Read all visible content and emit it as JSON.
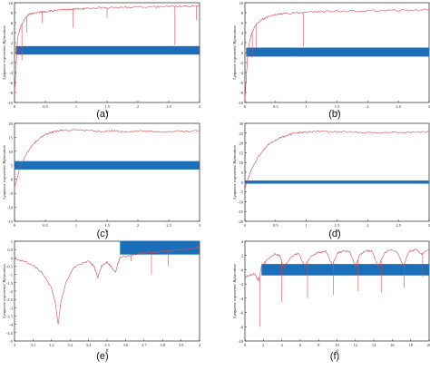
{
  "figure": {
    "panel_labels": [
      "(a)",
      "(b)",
      "(c)",
      "(d)",
      "(e)",
      "(f)"
    ],
    "colors": {
      "lyapunov": "#e0484f",
      "bifurcation": "#1a6fb8",
      "axis": "#222222"
    }
  },
  "chart_data": [
    {
      "type": "line",
      "panel": "(a)",
      "xlabel": "α",
      "ylabel": "Lyapunov exponents/ Bifurcation",
      "xlim": [
        0,
        3
      ],
      "ylim": [
        -10,
        10
      ],
      "xticks": [
        "0",
        "0.5",
        "1",
        "1.5",
        "2",
        "2.5",
        "3"
      ],
      "yticks": [
        "10",
        "8",
        "6",
        "4",
        "2",
        "0",
        "-2",
        "-4",
        "-6",
        "-8",
        "-10"
      ],
      "bifurcation_band": {
        "from_x": 0.02,
        "to_x": 3,
        "y_low": -0.4,
        "y_high": 1.3
      },
      "series": [
        {
          "x": [
            0,
            0.05,
            0.1,
            0.15,
            0.2,
            0.25,
            0.3,
            0.4,
            0.5,
            0.6,
            0.7,
            0.8,
            0.9,
            1.0,
            1.1,
            1.2,
            1.4,
            1.6,
            1.8,
            2.0,
            2.2,
            2.4,
            2.6,
            2.8,
            3.0
          ],
          "y": [
            -8.5,
            3.0,
            5.2,
            6.5,
            7.2,
            7.8,
            7.9,
            8.1,
            8.2,
            8.4,
            8.5,
            8.6,
            8.7,
            8.8,
            8.8,
            8.9,
            9.0,
            9.0,
            9.1,
            9.1,
            9.2,
            9.2,
            9.3,
            9.3,
            9.4
          ]
        }
      ],
      "dips": [
        [
          0.12,
          -1.5
        ],
        [
          0.2,
          4.0
        ],
        [
          0.45,
          6.0
        ],
        [
          0.95,
          5.0
        ],
        [
          1.5,
          7.0
        ],
        [
          2.6,
          1.5
        ],
        [
          2.95,
          6.5
        ]
      ]
    },
    {
      "type": "line",
      "panel": "(b)",
      "xlabel": "α",
      "ylabel": "Lyapunov exponents/ Bifurcation",
      "xlim": [
        0,
        3
      ],
      "ylim": [
        -10,
        10
      ],
      "xticks": [
        "0",
        "0.5",
        "1",
        "1.5",
        "2",
        "2.5",
        "3"
      ],
      "yticks": [
        "10",
        "8",
        "6",
        "4",
        "2",
        "0",
        "-2",
        "-4",
        "-6",
        "-8",
        "-10"
      ],
      "bifurcation_band": {
        "from_x": 0.02,
        "to_x": 3,
        "y_low": -0.8,
        "y_high": 1.0
      },
      "series": [
        {
          "x": [
            0,
            0.05,
            0.1,
            0.15,
            0.2,
            0.3,
            0.4,
            0.5,
            0.6,
            0.8,
            1.0,
            1.2,
            1.5,
            1.8,
            2.1,
            2.4,
            2.7,
            3.0
          ],
          "y": [
            -9.5,
            0.5,
            3.5,
            5.0,
            5.8,
            6.8,
            7.3,
            7.6,
            7.8,
            8.0,
            8.1,
            8.2,
            8.3,
            8.3,
            8.4,
            8.5,
            8.5,
            8.6
          ]
        }
      ],
      "dips": [
        [
          0.12,
          -1.0
        ],
        [
          0.18,
          1.0
        ],
        [
          0.95,
          1.2
        ]
      ]
    },
    {
      "type": "line",
      "panel": "(c)",
      "xlabel": "α",
      "ylabel": "Lyapunov exponents/ Bifurcation",
      "xlim": [
        0,
        3
      ],
      "ylim": [
        -15,
        20
      ],
      "xticks": [
        "0",
        "0.5",
        "1",
        "1.5",
        "2",
        "2.5",
        "3"
      ],
      "yticks": [
        "20",
        "15",
        "10",
        "5",
        "0",
        "-5",
        "-10",
        "-15"
      ],
      "bifurcation_band": {
        "from_x": 0.0,
        "to_x": 3,
        "y_low": 3.5,
        "y_high": 6.5
      },
      "series": [
        {
          "x": [
            0,
            0.1,
            0.2,
            0.3,
            0.4,
            0.5,
            0.6,
            0.7,
            0.8,
            1.0,
            1.2,
            1.4,
            1.6,
            1.8,
            2.0,
            2.2,
            2.4,
            2.6,
            2.8,
            3.0
          ],
          "y": [
            -3,
            5.0,
            9.5,
            12.5,
            14.5,
            16.0,
            16.8,
            17.3,
            17.5,
            17.6,
            17.4,
            17.2,
            17.3,
            17.0,
            17.2,
            17.1,
            17.0,
            17.2,
            17.1,
            17.3
          ]
        }
      ],
      "dips": []
    },
    {
      "type": "line",
      "panel": "(d)",
      "xlabel": "α",
      "ylabel": "Lyapunov exponents/ Bifurcation",
      "xlim": [
        0,
        3
      ],
      "ylim": [
        -20,
        30
      ],
      "xticks": [
        "0",
        "0.5",
        "1",
        "1.5",
        "2",
        "2.5",
        "3"
      ],
      "yticks": [
        "30",
        "25",
        "20",
        "15",
        "10",
        "5",
        "0",
        "-5",
        "-10",
        "-15",
        "-20"
      ],
      "bifurcation_band": {
        "from_x": 0.0,
        "to_x": 3,
        "y_low": -0.8,
        "y_high": 0.8
      },
      "series": [
        {
          "x": [
            0,
            0.1,
            0.2,
            0.3,
            0.4,
            0.5,
            0.6,
            0.7,
            0.8,
            0.9,
            1.0,
            1.2,
            1.4,
            1.6,
            1.8,
            2.0,
            2.2,
            2.4,
            2.6,
            2.8,
            3.0
          ],
          "y": [
            -3,
            6.0,
            12.0,
            16.5,
            19.5,
            21.5,
            23.0,
            24.0,
            24.8,
            25.3,
            25.6,
            25.8,
            25.5,
            25.7,
            25.4,
            25.6,
            25.3,
            25.5,
            25.2,
            25.4,
            25.6
          ]
        }
      ],
      "dips": []
    },
    {
      "type": "line",
      "panel": "(e)",
      "xlabel": "β",
      "ylabel": "Lyapunov exponents/ Bifurcation",
      "xlim": [
        3,
        4
      ],
      "ylim": [
        -5,
        1
      ],
      "xticks": [
        "3",
        "3.1",
        "3.2",
        "3.3",
        "3.4",
        "3.5",
        "3.6",
        "3.7",
        "3.8",
        "3.9",
        "4"
      ],
      "yticks": [
        "1",
        "0.5",
        "0",
        "-0.5",
        "-1",
        "-1.5",
        "-2",
        "-2.5",
        "-3",
        "-3.5",
        "-4",
        "-4.5",
        "-5"
      ],
      "bifurcation_band": {
        "from_x": 3.57,
        "to_x": 4,
        "y_low": 0.2,
        "y_high": 1.0
      },
      "series": [
        {
          "x": [
            3.0,
            3.05,
            3.1,
            3.15,
            3.2,
            3.22,
            3.236,
            3.25,
            3.28,
            3.32,
            3.36,
            3.4,
            3.43,
            3.45,
            3.47,
            3.5,
            3.52,
            3.545,
            3.56,
            3.57,
            3.6,
            3.65,
            3.7,
            3.75,
            3.8,
            3.85,
            3.9,
            3.95,
            4.0
          ],
          "y": [
            -0.05,
            -0.2,
            -0.45,
            -0.9,
            -1.8,
            -2.7,
            -4.0,
            -2.7,
            -1.4,
            -0.6,
            -0.35,
            -0.2,
            -0.5,
            -1.2,
            -0.5,
            -0.25,
            -0.5,
            -0.9,
            -0.3,
            0.0,
            0.1,
            0.2,
            0.3,
            0.35,
            0.4,
            0.45,
            0.5,
            0.55,
            0.65
          ]
        }
      ],
      "dips": [
        [
          3.63,
          -0.2
        ],
        [
          3.74,
          -1.0
        ],
        [
          3.83,
          -0.5
        ]
      ]
    },
    {
      "type": "line",
      "panel": "(f)",
      "xlabel": "α",
      "ylabel": "Lyapunov exponents/ Bifurcation",
      "xlim": [
        0,
        20
      ],
      "ylim": [
        -10,
        4
      ],
      "xticks": [
        "0",
        "2",
        "4",
        "6",
        "8",
        "10",
        "12",
        "14",
        "16",
        "18",
        "20"
      ],
      "yticks": [
        "4",
        "2",
        "0",
        "-2",
        "-4",
        "-6",
        "-8",
        "-10"
      ],
      "bifurcation_band": {
        "from_x": 1.8,
        "to_x": 20,
        "y_low": -0.8,
        "y_high": 0.8
      },
      "series": [
        {
          "x": [
            0,
            0.5,
            1.0,
            1.5,
            1.8,
            2.5,
            3.2,
            3.8,
            4.2,
            5.0,
            5.8,
            6.5,
            7.2,
            8.0,
            8.8,
            9.5,
            10.0,
            10.6,
            11.4,
            12.0,
            12.5,
            13.2,
            13.8,
            14.5,
            15.2,
            15.8,
            16.5,
            17.2,
            17.8,
            18.5,
            19.2,
            20.0
          ],
          "y": [
            -1.0,
            -0.8,
            -0.5,
            -1.5,
            0.5,
            1.5,
            2.2,
            2.0,
            0.3,
            1.8,
            2.3,
            0.5,
            2.0,
            2.4,
            2.6,
            0.6,
            2.3,
            2.6,
            2.5,
            0.5,
            2.2,
            2.7,
            2.6,
            0.4,
            2.4,
            2.8,
            2.5,
            0.6,
            2.5,
            2.9,
            2.2,
            2.8
          ]
        }
      ],
      "dips": [
        [
          1.6,
          -8.0
        ],
        [
          4.0,
          -4.5
        ],
        [
          6.8,
          -4.0
        ],
        [
          9.6,
          -3.5
        ],
        [
          12.3,
          -3.0
        ],
        [
          14.8,
          -3.2
        ],
        [
          17.3,
          -2.5
        ],
        [
          19.3,
          -1.0
        ]
      ]
    }
  ]
}
